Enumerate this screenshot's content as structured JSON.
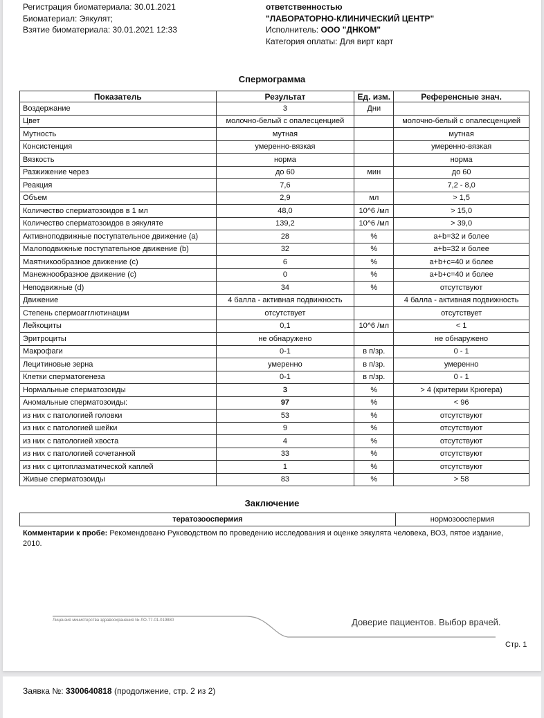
{
  "header_left": [
    "Регистрация биоматериала: 30.01.2021",
    "Биоматериал: Эякулят;",
    "Взятие биоматериала: 30.01.2021 12:33"
  ],
  "header_right": {
    "line1": "ответственностью",
    "lab": "\"ЛАБОРАТОРНО-КЛИНИЧЕСКИЙ ЦЕНТР\"",
    "executor_label": "Исполнитель:",
    "executor": "ООО \"ДНКОМ\"",
    "payment": "Категория оплаты: Для вирт карт"
  },
  "title": "Спермограмма",
  "columns": [
    "Показатель",
    "Результат",
    "Ед. изм.",
    "Референсные знач."
  ],
  "rows": [
    [
      "Воздержание",
      "3",
      "Дни",
      ""
    ],
    [
      "Цвет",
      "молочно-белый с опалесценцией",
      "",
      "молочно-белый с опалесценцией"
    ],
    [
      "Мутность",
      "мутная",
      "",
      "мутная"
    ],
    [
      "Консистенция",
      "умеренно-вязкая",
      "",
      "умеренно-вязкая"
    ],
    [
      "Вязкость",
      "норма",
      "",
      "норма"
    ],
    [
      "Разжижение через",
      "до 60",
      "мин",
      "до 60"
    ],
    [
      "Реакция",
      "7,6",
      "",
      "7,2 - 8,0"
    ],
    [
      "Объем",
      "2,9",
      "мл",
      "> 1,5"
    ],
    [
      "Количество сперматозоидов в 1 мл",
      "48,0",
      "10^6 /мл",
      "> 15,0"
    ],
    [
      "Количество сперматозоидов в эякуляте",
      "139,2",
      "10^6 /мл",
      "> 39,0"
    ],
    [
      "Активноподвижные поступательное движение (a)",
      "28",
      "%",
      "a+b=32 и более"
    ],
    [
      "Малоподвижные поступательное движение (b)",
      "32",
      "%",
      "a+b=32 и более"
    ],
    [
      "Маятникообразное движение (c)",
      "6",
      "%",
      "a+b+c=40 и более"
    ],
    [
      "Манежнообразное движение (c)",
      "0",
      "%",
      "a+b+c=40 и более"
    ],
    [
      "Неподвижные (d)",
      "34",
      "%",
      "отсутствуют"
    ],
    [
      "Движение",
      "4 балла - активная подвижность",
      "",
      "4 балла - активная подвижность"
    ],
    [
      "Степень спермоагглютинации",
      "отсутствует",
      "",
      "отсутствует"
    ],
    [
      "Лейкоциты",
      "0,1",
      "10^6 /мл",
      "< 1"
    ],
    [
      "Эритроциты",
      "не обнаружено",
      "",
      "не обнаружено"
    ],
    [
      "Макрофаги",
      "0-1",
      "в п/зр.",
      "0 - 1"
    ],
    [
      "Лецитиновые зерна",
      "умеренно",
      "в п/зр.",
      "умеренно"
    ],
    [
      "Клетки сперматогенеза",
      "0-1",
      "в п/зр.",
      "0 - 1"
    ],
    [
      "Нормальные сперматозоиды",
      "3",
      "%",
      "> 4 (критерии Крюгера)"
    ],
    [
      "Аномальные сперматозоиды:",
      "97",
      "%",
      "< 96"
    ],
    [
      "из них с патологией головки",
      "53",
      "%",
      "отсутствуют"
    ],
    [
      "из них с патологией шейки",
      "9",
      "%",
      "отсутствуют"
    ],
    [
      "из них с патологией хвоста",
      "4",
      "%",
      "отсутствуют"
    ],
    [
      "из них с патологией сочетанной",
      "33",
      "%",
      "отсутствуют"
    ],
    [
      "из них с цитоплазматической каплей",
      "1",
      "%",
      "отсутствуют"
    ],
    [
      "Живые сперматозоиды",
      "83",
      "%",
      "> 58"
    ]
  ],
  "bold_results": [
    22,
    23
  ],
  "conclusion_title": "Заключение",
  "conclusion": [
    "тератозооспермия",
    "нормозооспермия"
  ],
  "comment_label": "Комментарии к пробе:",
  "comment": " Рекомендовано Руководством по проведению исследования и оценке эякулята человека, ВОЗ, пятое издание, 2010.",
  "license": "Лицензия министерства здравоохранения № ЛО-77-01-019880",
  "slogan": "Доверие пациентов. Выбор врачей.",
  "page_num": "Стр. 1",
  "page2": {
    "label": "Заявка №: ",
    "number": "3300640818",
    "rest": " (продолжение, стр. 2 из 2)"
  }
}
